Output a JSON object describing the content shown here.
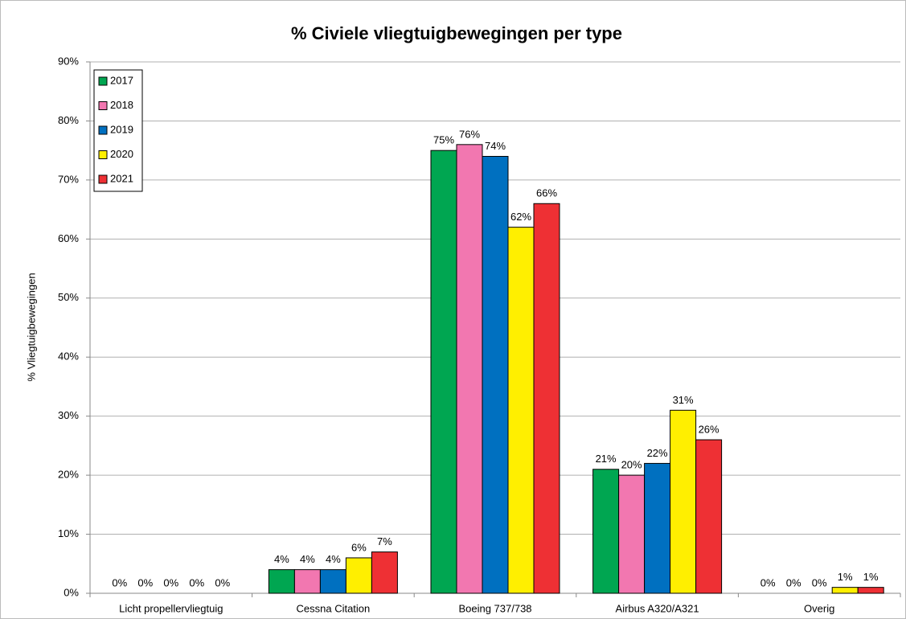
{
  "chart_data": {
    "type": "bar",
    "title": "% Civiele vliegtuigbewegingen per type",
    "y_label": "% Vliegtuigbewegingen",
    "categories": [
      "Licht propellervliegtuig",
      "Cessna Citation",
      "Boeing 737/738",
      "Airbus A320/A321",
      "Overig"
    ],
    "series": [
      {
        "name": "2017",
        "color": "#00a651",
        "values": [
          0,
          4,
          75,
          21,
          0
        ],
        "value_labels": [
          "0%",
          "4%",
          "75%",
          "21%",
          "0%"
        ]
      },
      {
        "name": "2018",
        "color": "#f277b0",
        "values": [
          0,
          4,
          76,
          20,
          0
        ],
        "value_labels": [
          "0%",
          "4%",
          "76%",
          "20%",
          "0%"
        ]
      },
      {
        "name": "2019",
        "color": "#0070c0",
        "values": [
          0,
          4,
          74,
          22,
          0
        ],
        "value_labels": [
          "0%",
          "4%",
          "74%",
          "22%",
          "0%"
        ]
      },
      {
        "name": "2020",
        "color": "#ffef00",
        "values": [
          0,
          6,
          62,
          31,
          1
        ],
        "value_labels": [
          "0%",
          "6%",
          "62%",
          "31%",
          "1%"
        ]
      },
      {
        "name": "2021",
        "color": "#ee3034",
        "values": [
          0,
          7,
          66,
          26,
          1
        ],
        "value_labels": [
          "0%",
          "7%",
          "66%",
          "26%",
          "1%"
        ]
      }
    ],
    "ylim": [
      0,
      90
    ],
    "yticks": [
      {
        "value": 0,
        "label": "0%"
      },
      {
        "value": 10,
        "label": "10%"
      },
      {
        "value": 20,
        "label": "20%"
      },
      {
        "value": 30,
        "label": "30%"
      },
      {
        "value": 40,
        "label": "40%"
      },
      {
        "value": 50,
        "label": "50%"
      },
      {
        "value": 60,
        "label": "60%"
      },
      {
        "value": 70,
        "label": "70%"
      },
      {
        "value": 80,
        "label": "80%"
      },
      {
        "value": 90,
        "label": "90%"
      }
    ],
    "grid": true,
    "legend": "top-left"
  }
}
